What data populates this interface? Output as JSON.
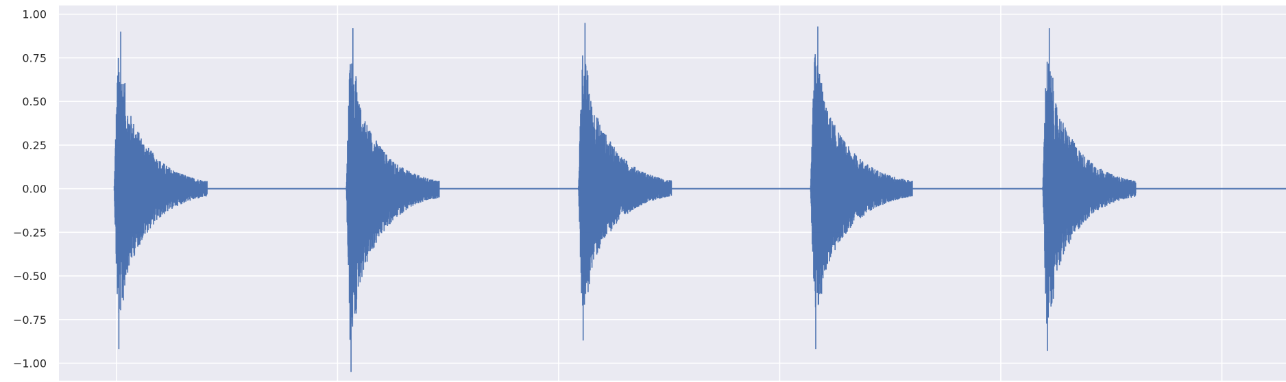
{
  "chart_data": {
    "type": "line",
    "title": "",
    "xlabel": "",
    "ylabel": "",
    "ylim": [
      -1.1,
      1.05
    ],
    "xlim": [
      0,
      5.55
    ],
    "y_ticks": [
      {
        "value": 1.0,
        "label": "1.00"
      },
      {
        "value": 0.75,
        "label": "0.75"
      },
      {
        "value": 0.5,
        "label": "0.50"
      },
      {
        "value": 0.25,
        "label": "0.25"
      },
      {
        "value": 0.0,
        "label": "0.00"
      },
      {
        "value": -0.25,
        "label": "−0.25"
      },
      {
        "value": -0.5,
        "label": "−0.50"
      },
      {
        "value": -0.75,
        "label": "−0.75"
      },
      {
        "value": -1.0,
        "label": "−1.00"
      }
    ],
    "x_gridlines": [
      0.26,
      1.26,
      2.26,
      3.26,
      4.26,
      5.26
    ],
    "grid": true,
    "style": "seaborn-darkgrid",
    "colors": {
      "line": "#4c72b0",
      "background": "#eaeaf2",
      "grid": "#ffffff"
    },
    "series": [
      {
        "bursts": [
          {
            "onset": 0.25,
            "duration": 0.42,
            "peak_pos": 0.9,
            "peak_neg": -0.92
          },
          {
            "onset": 1.3,
            "duration": 0.42,
            "peak_pos": 0.92,
            "peak_neg": -1.05
          },
          {
            "onset": 2.35,
            "duration": 0.42,
            "peak_pos": 0.95,
            "peak_neg": -0.87
          },
          {
            "onset": 3.4,
            "duration": 0.46,
            "peak_pos": 0.93,
            "peak_neg": -0.92
          },
          {
            "onset": 4.45,
            "duration": 0.42,
            "peak_pos": 0.92,
            "peak_neg": -0.93
          }
        ]
      }
    ]
  }
}
